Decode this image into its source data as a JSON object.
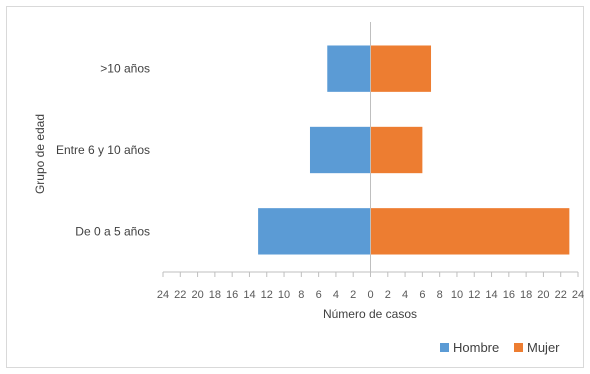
{
  "chart_data": {
    "type": "bar",
    "orientation": "horizontal",
    "layout": "population-pyramid",
    "categories": [
      "De 0 a 5 años",
      "Entre 6 y 10 años",
      ">10 años"
    ],
    "series": [
      {
        "name": "Hombre",
        "values": [
          13,
          7,
          5
        ],
        "color": "#5b9bd5",
        "side": "left"
      },
      {
        "name": "Mujer",
        "values": [
          23,
          6,
          7
        ],
        "color": "#ed7d31",
        "side": "right"
      }
    ],
    "xlabel": "Número de casos",
    "ylabel": "Grupo de edad",
    "xlim": [
      -24,
      24
    ],
    "xticks": [
      -24,
      -22,
      -20,
      -18,
      -16,
      -14,
      -12,
      -10,
      -8,
      -6,
      -4,
      -2,
      0,
      2,
      4,
      6,
      8,
      10,
      12,
      14,
      16,
      18,
      20,
      22,
      24
    ],
    "x_tick_labels_absolute": true,
    "grid": false,
    "legend_position": "bottom-right"
  }
}
